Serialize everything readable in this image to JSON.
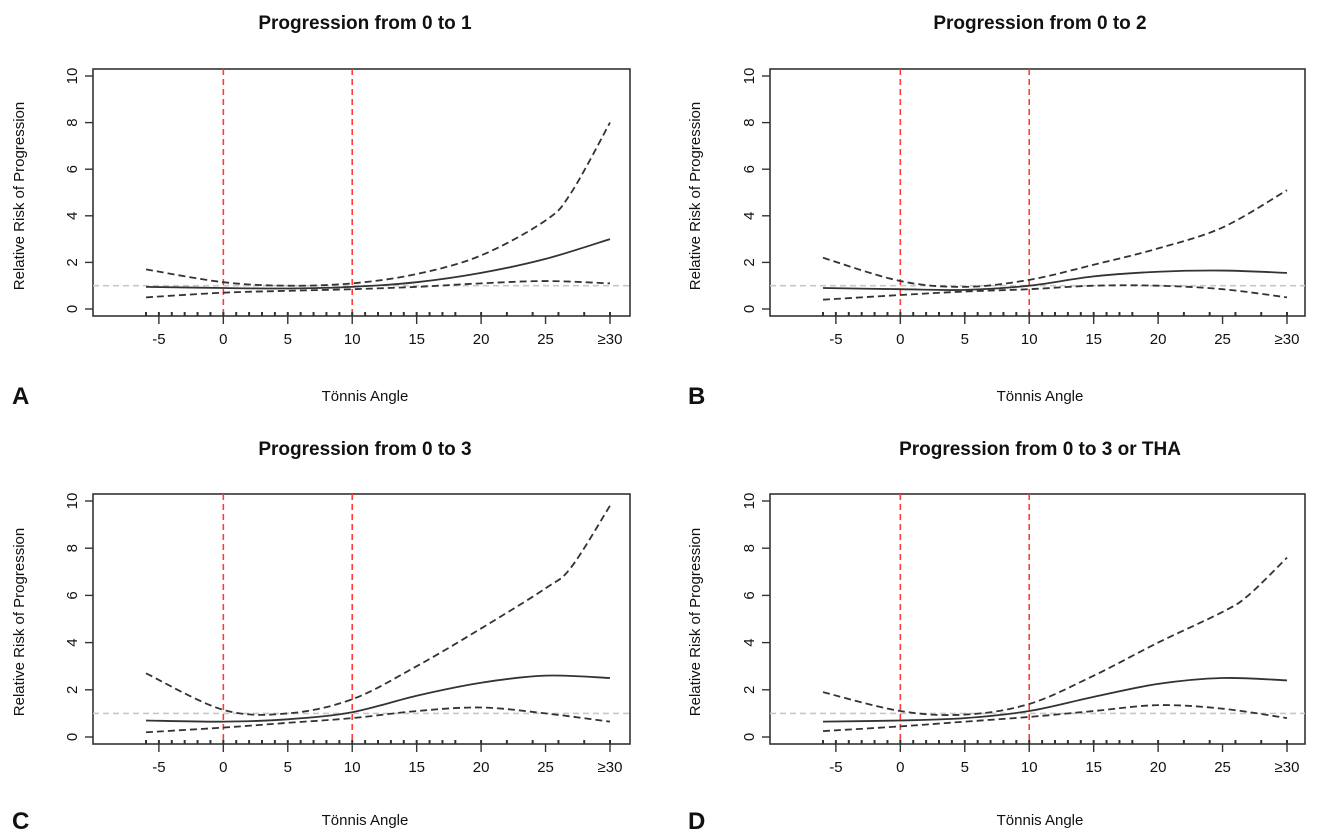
{
  "chart_data": [
    {
      "type": "line",
      "panel_label": "A",
      "title": "Progression from 0 to  1",
      "xlabel": "Tönnis Angle",
      "ylabel": "Relative Risk of Progression",
      "xlim": [
        -6,
        30
      ],
      "ylim": [
        0,
        10
      ],
      "x_ticks": [
        -5,
        0,
        5,
        10,
        15,
        20,
        25,
        30
      ],
      "x_tick_labels": [
        "-5",
        "0",
        "5",
        "10",
        "15",
        "20",
        "25",
        "≥30"
      ],
      "y_ticks": [
        0,
        2,
        4,
        6,
        8,
        10
      ],
      "reference_lines": {
        "vertical_x": [
          0,
          10
        ],
        "vertical_color": "#ff3b3b",
        "horizontal_y": 1,
        "horizontal_color": "#c8c8c8"
      },
      "series": [
        {
          "role": "estimate",
          "style": "solid",
          "x": [
            -6,
            0,
            5,
            10,
            15,
            20,
            25,
            30
          ],
          "y": [
            0.95,
            0.9,
            0.88,
            0.95,
            1.15,
            1.55,
            2.15,
            3.0
          ]
        },
        {
          "role": "upper-ci",
          "style": "dashed",
          "x": [
            -6,
            0,
            5,
            10,
            15,
            20,
            25,
            27,
            30
          ],
          "y": [
            1.7,
            1.15,
            1.0,
            1.1,
            1.5,
            2.3,
            3.8,
            5.0,
            8.0
          ]
        },
        {
          "role": "lower-ci",
          "style": "dashed",
          "x": [
            -6,
            0,
            5,
            10,
            15,
            20,
            25,
            30
          ],
          "y": [
            0.5,
            0.7,
            0.78,
            0.85,
            0.95,
            1.1,
            1.2,
            1.1
          ]
        }
      ],
      "rug_x": [
        -6,
        -5,
        -4,
        -3,
        -2,
        -1,
        0,
        1,
        2,
        3,
        4,
        5,
        6,
        7,
        8,
        9,
        10,
        11,
        12,
        13,
        14,
        15,
        16,
        17,
        18,
        20,
        22,
        24,
        26,
        28,
        30
      ]
    },
    {
      "type": "line",
      "panel_label": "B",
      "title": "Progression from 0 to  2",
      "xlabel": "Tönnis Angle",
      "ylabel": "Relative Risk of Progression",
      "xlim": [
        -6,
        30
      ],
      "ylim": [
        0,
        10
      ],
      "x_ticks": [
        -5,
        0,
        5,
        10,
        15,
        20,
        25,
        30
      ],
      "x_tick_labels": [
        "-5",
        "0",
        "5",
        "10",
        "15",
        "20",
        "25",
        "≥30"
      ],
      "y_ticks": [
        0,
        2,
        4,
        6,
        8,
        10
      ],
      "reference_lines": {
        "vertical_x": [
          0,
          10
        ],
        "vertical_color": "#ff3b3b",
        "horizontal_y": 1,
        "horizontal_color": "#c8c8c8"
      },
      "series": [
        {
          "role": "estimate",
          "style": "solid",
          "x": [
            -6,
            0,
            5,
            10,
            15,
            20,
            25,
            30
          ],
          "y": [
            0.9,
            0.85,
            0.82,
            1.0,
            1.4,
            1.6,
            1.65,
            1.55
          ]
        },
        {
          "role": "upper-ci",
          "style": "dashed",
          "x": [
            -6,
            0,
            5,
            10,
            15,
            20,
            25,
            30
          ],
          "y": [
            2.2,
            1.2,
            0.95,
            1.25,
            1.9,
            2.6,
            3.5,
            5.1
          ]
        },
        {
          "role": "lower-ci",
          "style": "dashed",
          "x": [
            -6,
            0,
            5,
            10,
            15,
            20,
            25,
            30
          ],
          "y": [
            0.4,
            0.6,
            0.75,
            0.85,
            1.0,
            1.0,
            0.85,
            0.5
          ]
        }
      ],
      "rug_x": [
        -6,
        -5,
        -4,
        -3,
        -2,
        -1,
        0,
        1,
        2,
        3,
        4,
        5,
        6,
        7,
        8,
        9,
        10,
        11,
        12,
        13,
        14,
        15,
        16,
        17,
        18,
        20,
        22,
        24,
        26,
        28,
        30
      ]
    },
    {
      "type": "line",
      "panel_label": "C",
      "title": "Progression from 0 to  3",
      "xlabel": "Tönnis Angle",
      "ylabel": "Relative Risk of Progression",
      "xlim": [
        -6,
        30
      ],
      "ylim": [
        0,
        10
      ],
      "x_ticks": [
        -5,
        0,
        5,
        10,
        15,
        20,
        25,
        30
      ],
      "x_tick_labels": [
        "-5",
        "0",
        "5",
        "10",
        "15",
        "20",
        "25",
        "≥30"
      ],
      "y_ticks": [
        0,
        2,
        4,
        6,
        8,
        10
      ],
      "reference_lines": {
        "vertical_x": [
          0,
          10
        ],
        "vertical_color": "#ff3b3b",
        "horizontal_y": 1,
        "horizontal_color": "#c8c8c8"
      },
      "series": [
        {
          "role": "estimate",
          "style": "solid",
          "x": [
            -6,
            0,
            5,
            10,
            15,
            20,
            25,
            30
          ],
          "y": [
            0.7,
            0.65,
            0.75,
            1.05,
            1.75,
            2.3,
            2.6,
            2.5
          ]
        },
        {
          "role": "upper-ci",
          "style": "dashed",
          "x": [
            -6,
            0,
            5,
            10,
            15,
            20,
            25,
            27,
            30
          ],
          "y": [
            2.7,
            1.15,
            1.0,
            1.6,
            3.0,
            4.6,
            6.3,
            7.2,
            9.8
          ]
        },
        {
          "role": "lower-ci",
          "style": "dashed",
          "x": [
            -6,
            0,
            5,
            10,
            15,
            20,
            25,
            30
          ],
          "y": [
            0.2,
            0.4,
            0.6,
            0.8,
            1.1,
            1.25,
            1.0,
            0.65
          ]
        }
      ],
      "rug_x": [
        -6,
        -5,
        -4,
        -3,
        -2,
        -1,
        0,
        1,
        2,
        3,
        4,
        5,
        6,
        7,
        8,
        9,
        10,
        11,
        12,
        13,
        14,
        15,
        16,
        17,
        18,
        20,
        22,
        24,
        26,
        28,
        30
      ]
    },
    {
      "type": "line",
      "panel_label": "D",
      "title": "Progression from 0 to  3 or THA",
      "xlabel": "Tönnis Angle",
      "ylabel": "Relative Risk of Progression",
      "xlim": [
        -6,
        30
      ],
      "ylim": [
        0,
        10
      ],
      "x_ticks": [
        -5,
        0,
        5,
        10,
        15,
        20,
        25,
        30
      ],
      "x_tick_labels": [
        "-5",
        "0",
        "5",
        "10",
        "15",
        "20",
        "25",
        "≥30"
      ],
      "y_ticks": [
        0,
        2,
        4,
        6,
        8,
        10
      ],
      "reference_lines": {
        "vertical_x": [
          0,
          10
        ],
        "vertical_color": "#ff3b3b",
        "horizontal_y": 1,
        "horizontal_color": "#c8c8c8"
      },
      "series": [
        {
          "role": "estimate",
          "style": "solid",
          "x": [
            -6,
            0,
            5,
            10,
            15,
            20,
            25,
            30
          ],
          "y": [
            0.65,
            0.7,
            0.8,
            1.1,
            1.7,
            2.25,
            2.5,
            2.4
          ]
        },
        {
          "role": "upper-ci",
          "style": "dashed",
          "x": [
            -6,
            0,
            5,
            10,
            15,
            20,
            25,
            27,
            30
          ],
          "y": [
            1.9,
            1.1,
            0.95,
            1.4,
            2.6,
            4.0,
            5.3,
            6.0,
            7.6
          ]
        },
        {
          "role": "lower-ci",
          "style": "dashed",
          "x": [
            -6,
            0,
            5,
            10,
            15,
            20,
            25,
            30
          ],
          "y": [
            0.25,
            0.45,
            0.65,
            0.85,
            1.1,
            1.35,
            1.2,
            0.8
          ]
        }
      ],
      "rug_x": [
        -6,
        -5,
        -4,
        -3,
        -2,
        -1,
        0,
        1,
        2,
        3,
        4,
        5,
        6,
        7,
        8,
        9,
        10,
        11,
        12,
        13,
        14,
        15,
        16,
        17,
        18,
        20,
        22,
        24,
        26,
        28,
        30
      ]
    }
  ]
}
